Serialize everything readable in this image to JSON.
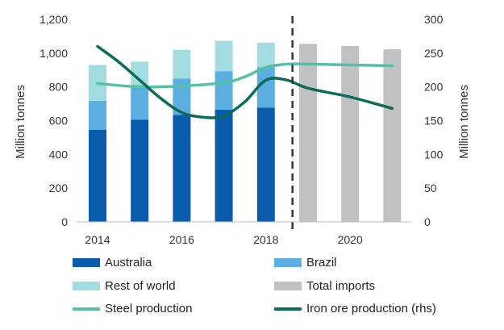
{
  "chart_data": {
    "type": "bar",
    "categories": [
      "2014",
      "2015",
      "2016",
      "2017",
      "2018",
      "2019",
      "2020",
      "2021"
    ],
    "x_tick_labels": [
      "2014",
      "2016",
      "2018",
      "2020"
    ],
    "stacked_series": [
      {
        "name": "Australia",
        "color": "#0b5cad",
        "values": [
          545,
          605,
          635,
          665,
          678,
          0,
          0,
          0
        ]
      },
      {
        "name": "Brazil",
        "color": "#5aaee0",
        "values": [
          172,
          205,
          215,
          228,
          238,
          0,
          0,
          0
        ]
      },
      {
        "name": "Rest of world",
        "color": "#a3dce0",
        "values": [
          213,
          140,
          170,
          180,
          146,
          0,
          0,
          0
        ]
      },
      {
        "name": "Total imports",
        "color": "#bfc1c3",
        "values": [
          0,
          0,
          0,
          0,
          0,
          1055,
          1042,
          1022
        ]
      }
    ],
    "line_series": [
      {
        "name": "Steel production",
        "color": "#57bfa8",
        "axis": "left",
        "x": [
          2014,
          2015,
          2016,
          2017,
          2017.5,
          2018,
          2018.5,
          2019,
          2020,
          2021
        ],
        "values": [
          820,
          800,
          805,
          825,
          860,
          915,
          935,
          935,
          930,
          925
        ]
      },
      {
        "name": "Iron ore production (rhs)",
        "color": "#0e6b5a",
        "axis": "right",
        "x": [
          2014,
          2014.5,
          2015,
          2015.5,
          2016,
          2016.5,
          2017,
          2017.5,
          2018,
          2018.5,
          2019,
          2020,
          2021
        ],
        "values": [
          260,
          237,
          210,
          183,
          162,
          155,
          157,
          178,
          210,
          210,
          198,
          185,
          168
        ]
      }
    ],
    "divider_after": "2018",
    "y_left": {
      "label": "Million tonnes",
      "min": 0,
      "max": 1200,
      "step": 200,
      "tick_labels": [
        "0",
        "200",
        "400",
        "600",
        "800",
        "1,000",
        "1,200"
      ]
    },
    "y_right": {
      "label": "Million tonnes",
      "min": 0,
      "max": 300,
      "step": 50,
      "tick_labels": [
        "0",
        "50",
        "100",
        "150",
        "200",
        "250",
        "300"
      ]
    },
    "legend_position": "bottom",
    "grid": false
  }
}
